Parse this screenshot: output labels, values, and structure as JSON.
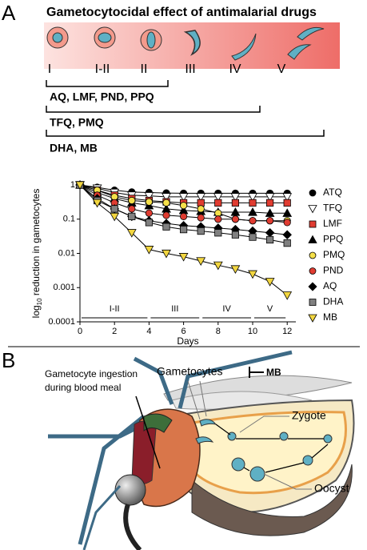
{
  "panel_a": {
    "label": "A",
    "title": "Gametocytocidal effect of antimalarial drugs",
    "stages": [
      "I",
      "I-II",
      "II",
      "III",
      "IV",
      "V"
    ],
    "drug_groups": [
      "AQ, LMF, PND, PPQ",
      "TFQ, PMQ",
      "DHA, MB"
    ]
  },
  "chart_data": {
    "type": "line",
    "xlabel": "Days",
    "ylabel": {
      "base": "log",
      "sub": "10",
      "text": " reduction in gametocytes"
    },
    "x": [
      0,
      1,
      2,
      3,
      4,
      5,
      6,
      7,
      8,
      9,
      10,
      11,
      12
    ],
    "xlim": [
      0,
      12.5
    ],
    "xticks": [
      0,
      2,
      4,
      6,
      8,
      10,
      12
    ],
    "ylim": [
      0.0001,
      1
    ],
    "yticks": [
      0.0001,
      0.001,
      0.01,
      0.1,
      1
    ],
    "yscale": "log",
    "legend": "right",
    "stage_bars": [
      {
        "label": "I-II",
        "from": 0,
        "to": 4
      },
      {
        "label": "III",
        "from": 4,
        "to": 7
      },
      {
        "label": "IV",
        "from": 7,
        "to": 10
      },
      {
        "label": "V",
        "from": 10,
        "to": 12
      }
    ],
    "series": [
      {
        "name": "ATQ",
        "color": "#000000",
        "marker": "circle",
        "values": [
          1,
          0.85,
          0.7,
          0.62,
          0.6,
          0.58,
          0.57,
          0.57,
          0.57,
          0.57,
          0.57,
          0.57,
          0.57
        ]
      },
      {
        "name": "TFQ",
        "color": "#ffffff",
        "marker": "triangle-down",
        "values": [
          1,
          0.8,
          0.6,
          0.5,
          0.48,
          0.45,
          0.45,
          0.45,
          0.45,
          0.45,
          0.45,
          0.45,
          0.45
        ]
      },
      {
        "name": "LMF",
        "color": "#e03c31",
        "marker": "square",
        "values": [
          1,
          0.7,
          0.5,
          0.4,
          0.35,
          0.32,
          0.3,
          0.3,
          0.3,
          0.3,
          0.3,
          0.3,
          0.3
        ]
      },
      {
        "name": "PPQ",
        "color": "#000000",
        "marker": "triangle-up",
        "values": [
          1,
          0.6,
          0.4,
          0.3,
          0.25,
          0.2,
          0.18,
          0.17,
          0.16,
          0.16,
          0.16,
          0.15,
          0.15
        ]
      },
      {
        "name": "PMQ",
        "color": "#f5e04a",
        "marker": "circle",
        "values": [
          1,
          0.7,
          0.45,
          0.35,
          0.32,
          0.3,
          0.25,
          0.2,
          0.15,
          0.1,
          0.09,
          0.09,
          0.09
        ]
      },
      {
        "name": "PND",
        "color": "#e03c31",
        "marker": "circle",
        "values": [
          1,
          0.5,
          0.3,
          0.2,
          0.15,
          0.13,
          0.12,
          0.11,
          0.1,
          0.1,
          0.09,
          0.09,
          0.08
        ]
      },
      {
        "name": "AQ",
        "color": "#000000",
        "marker": "diamond",
        "values": [
          1,
          0.4,
          0.2,
          0.12,
          0.09,
          0.075,
          0.065,
          0.06,
          0.055,
          0.05,
          0.045,
          0.04,
          0.035
        ]
      },
      {
        "name": "DHA",
        "color": "#808080",
        "marker": "square",
        "values": [
          1,
          0.35,
          0.2,
          0.12,
          0.08,
          0.06,
          0.05,
          0.045,
          0.04,
          0.035,
          0.03,
          0.025,
          0.02
        ]
      },
      {
        "name": "MB",
        "color": "#f2d640",
        "marker": "triangle-down",
        "values": [
          1,
          0.3,
          0.12,
          0.04,
          0.013,
          0.01,
          0.008,
          0.006,
          0.0045,
          0.0035,
          0.0025,
          0.0015,
          0.0006
        ]
      }
    ]
  },
  "panel_b": {
    "label": "B",
    "ingestion": [
      "Gametocyte ingestion",
      "during blood meal"
    ],
    "gametocytes": "Gametocytes",
    "inhibitor": "MB",
    "zygote": "Zygote",
    "oocyst": "Oocyst"
  }
}
